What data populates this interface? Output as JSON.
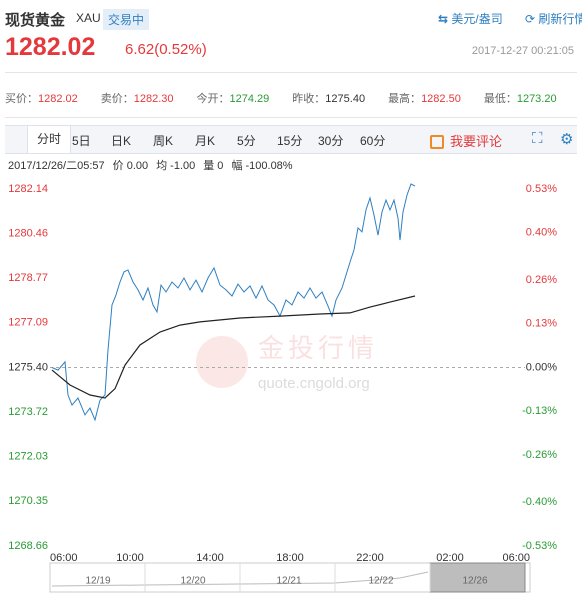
{
  "header": {
    "title": "现货黄金",
    "code": "XAU",
    "status": "交易中",
    "unit": "美元/盎司",
    "refresh": "刷新行情"
  },
  "price": {
    "last": "1282.02",
    "change": "6.62(0.52%)",
    "time": "2017-12-27 00:21:05"
  },
  "quotes": [
    {
      "label": "买价：",
      "value": "1282.02",
      "trend": "up"
    },
    {
      "label": "卖价：",
      "value": "1282.30",
      "trend": "up"
    },
    {
      "label": "今开：",
      "value": "1274.29",
      "trend": "down"
    },
    {
      "label": "昨收：",
      "value": "1275.40",
      "trend": "flat"
    },
    {
      "label": "最高：",
      "value": "1282.50",
      "trend": "up"
    },
    {
      "label": "最低：",
      "value": "1273.20",
      "trend": "down"
    }
  ],
  "tabs": [
    "分时",
    "5日",
    "日K",
    "周K",
    "月K",
    "5分",
    "15分",
    "30分",
    "60分"
  ],
  "comment": "我要评论",
  "info": [
    "2017/12/26/二05:57",
    "价 0.00",
    "均 -1.00",
    "量 0",
    "幅 -100.08%"
  ],
  "watermark": {
    "title": "金投行情",
    "url": "quote.cngold.org"
  },
  "chart_data": {
    "type": "line",
    "reference": 1275.4,
    "xlim": [
      0,
      1440
    ],
    "xticks": [
      {
        "value": 0,
        "label": "06:00"
      },
      {
        "value": 240,
        "label": "10:00"
      },
      {
        "value": 480,
        "label": "14:00"
      },
      {
        "value": 720,
        "label": "18:00"
      },
      {
        "value": 960,
        "label": "22:00"
      },
      {
        "value": 1200,
        "label": "02:00"
      },
      {
        "value": 1440,
        "label": "06:00"
      }
    ],
    "ylim": [
      1268.66,
      1282.14
    ],
    "yticks": [
      1282.14,
      1280.46,
      1278.77,
      1277.09,
      {
        "value": 1275.4,
        "label": "1275.40"
      },
      1273.72,
      1272.03,
      1270.35,
      1268.66
    ],
    "y2lim": [
      -0.53,
      0.53
    ],
    "y2ticks": [
      {
        "value": 0.53,
        "label": "0.53%"
      },
      {
        "value": 0.4,
        "label": "0.40%"
      },
      {
        "value": 0.26,
        "label": "0.26%"
      },
      {
        "value": 0.13,
        "label": "0.13%"
      },
      {
        "value": 0,
        "label": "0.00%"
      },
      {
        "value": -0.13,
        "label": "-0.13%"
      },
      {
        "value": -0.26,
        "label": "-0.26%"
      },
      {
        "value": -0.4,
        "label": "-0.40%"
      },
      {
        "value": -0.53,
        "label": "-0.53%"
      }
    ],
    "up_color": "#e4393c",
    "down_color": "#2a9b35",
    "flat_color": "#333333",
    "series": [
      {
        "color": "#2f7fc0",
        "x": [
          6,
          24,
          45,
          54,
          66,
          84,
          105,
          120,
          135,
          150,
          165,
          174,
          186,
          198,
          210,
          222,
          234,
          249,
          264,
          279,
          294,
          309,
          321,
          333,
          348,
          366,
          384,
          402,
          420,
          438,
          456,
          474,
          492,
          510,
          528,
          546,
          564,
          582,
          600,
          618,
          636,
          654,
          672,
          690,
          708,
          726,
          744,
          762,
          780,
          798,
          816,
          834,
          846,
          858,
          876,
          888,
          900,
          912,
          924,
          936,
          948,
          960,
          972,
          984,
          996,
          1008,
          1020,
          1032,
          1044,
          1050,
          1059,
          1071,
          1083,
          1095
        ],
        "values": [
          1275.4,
          1275.3,
          1275.61,
          1274.36,
          1273.98,
          1274.25,
          1273.61,
          1273.87,
          1273.42,
          1274.17,
          1274.36,
          1276.06,
          1277.76,
          1278.14,
          1278.63,
          1279.01,
          1279.08,
          1278.63,
          1278.33,
          1277.95,
          1278.4,
          1277.76,
          1277.5,
          1278.51,
          1278.25,
          1278.63,
          1278.4,
          1278.78,
          1278.33,
          1278.7,
          1278.25,
          1278.78,
          1279.16,
          1278.51,
          1278.33,
          1278.1,
          1278.55,
          1278.25,
          1278.48,
          1278.02,
          1278.48,
          1277.95,
          1277.76,
          1277.34,
          1277.95,
          1277.76,
          1278.25,
          1278.02,
          1278.4,
          1278.02,
          1278.25,
          1277.72,
          1277.34,
          1277.95,
          1278.4,
          1278.89,
          1279.38,
          1279.84,
          1280.67,
          1280.52,
          1281.35,
          1281.8,
          1281.16,
          1280.4,
          1281.27,
          1281.72,
          1281.35,
          1281.72,
          1281.04,
          1280.21,
          1281.27,
          1281.91,
          1282.33,
          1282.25
        ]
      },
      {
        "color": "#222222",
        "x": [
          6,
          60,
          120,
          165,
          195,
          225,
          270,
          330,
          390,
          450,
          570,
          690,
          810,
          900,
          960,
          1020,
          1095
        ],
        "values": [
          1275.3,
          1274.74,
          1274.36,
          1274.25,
          1274.6,
          1275.49,
          1276.25,
          1276.74,
          1277.0,
          1277.12,
          1277.27,
          1277.34,
          1277.42,
          1277.46,
          1277.68,
          1277.87,
          1278.1
        ]
      }
    ]
  },
  "navigator": [
    "12/19",
    "12/20",
    "12/21",
    "12/22",
    "12/26"
  ]
}
